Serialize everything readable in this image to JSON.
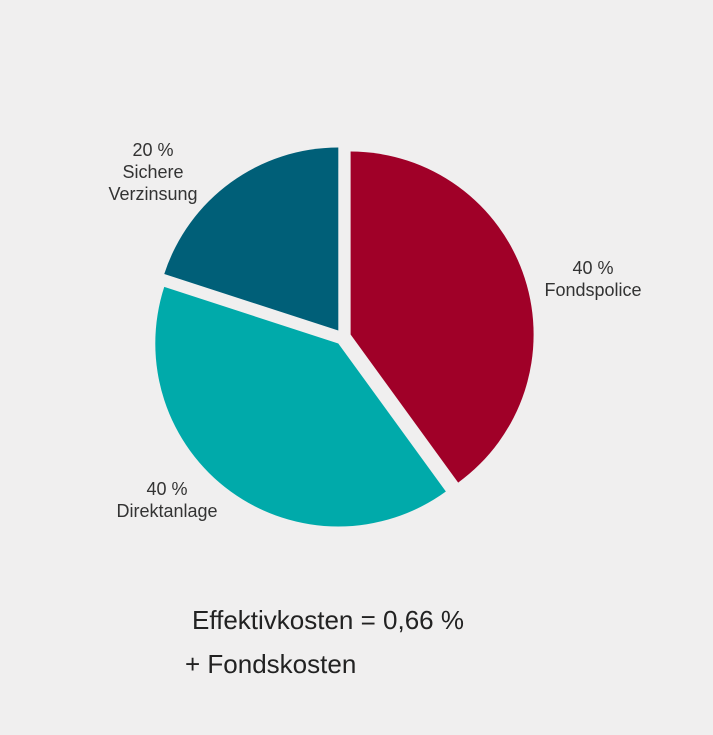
{
  "chart_data": {
    "type": "pie",
    "title": "",
    "slices": [
      {
        "name": "Fondspolice",
        "value": 40,
        "value_label": "40 %",
        "color": "#a00028"
      },
      {
        "name": "Direktanlage",
        "value": 40,
        "value_label": "40 %",
        "color": "#00aaaa"
      },
      {
        "name": "Sichere Verzinsung",
        "name_lines": [
          "Sichere",
          "Verzinsung"
        ],
        "value": 20,
        "value_label": "20 %",
        "color": "#005f78"
      }
    ],
    "start_angle_deg": 0,
    "direction": "clockwise",
    "exploded": true,
    "legend": "none"
  },
  "footnote": {
    "line1": "Effektivkosten = 0,66 %",
    "line2": "+ Fondskosten"
  }
}
